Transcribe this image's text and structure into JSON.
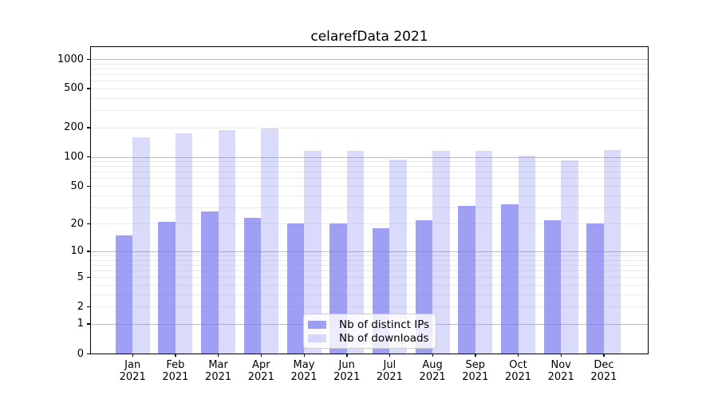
{
  "title": "celarefData 2021",
  "chart_data": {
    "type": "bar",
    "title": "celarefData 2021",
    "categories": [
      "Jan",
      "Feb",
      "Mar",
      "Apr",
      "May",
      "Jun",
      "Jul",
      "Aug",
      "Sep",
      "Oct",
      "Nov",
      "Dec"
    ],
    "category_year": "2021",
    "series": [
      {
        "name": "Nb of distinct IPs",
        "color": "rgba(118,118,240,0.70)",
        "values": [
          15,
          21,
          27,
          23,
          20,
          20,
          18,
          22,
          31,
          32,
          22,
          20
        ]
      },
      {
        "name": "Nb of downloads",
        "color": "rgba(118,118,240,0.27)",
        "values": [
          158,
          174,
          187,
          195,
          115,
          115,
          93,
          115,
          115,
          102,
          92,
          117
        ]
      }
    ],
    "yscale": "log10(value+1)",
    "ylim": [
      0,
      1325
    ],
    "ytick_labels": [
      0,
      1,
      2,
      5,
      10,
      20,
      50,
      100,
      200,
      500,
      1000
    ],
    "grid": {
      "major_values": [
        1,
        10,
        100,
        1000
      ],
      "major_color": "#bdbdbd",
      "minor_color": "#ebebeb"
    },
    "legend_position": "lower center"
  }
}
